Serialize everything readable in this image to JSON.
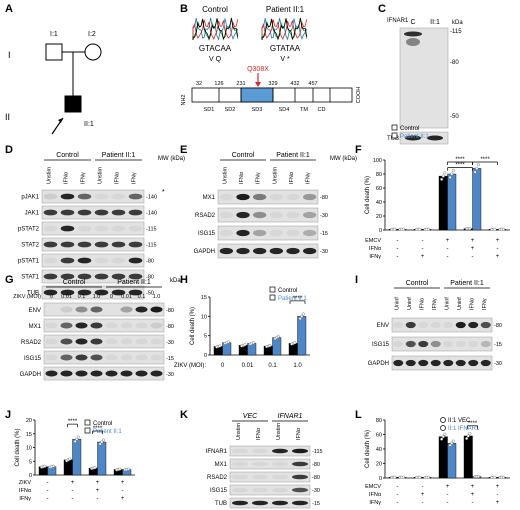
{
  "panels": {
    "A": {
      "letter": "A",
      "gen_I": "I",
      "gen_II": "II",
      "ind_I1": "I:1",
      "ind_I2": "I:2",
      "ind_II1": "II:1"
    },
    "B": {
      "letter": "B",
      "control": "Control",
      "patient": "Patient II:1",
      "seq_control": "GTACAA",
      "seq_patient": "GTATAA",
      "aa_control": "V  Q",
      "aa_patient": "V  *",
      "mutation": "Q308X",
      "nh2": "NH2",
      "cooh": "COOH",
      "positions": [
        "32",
        "126",
        "231",
        "329",
        "432",
        "457"
      ],
      "domains": [
        "SD1",
        "SD2",
        "SD3",
        "SD4",
        "TM",
        "CD"
      ]
    },
    "C": {
      "letter": "C",
      "lanes": [
        "C",
        "II:1"
      ],
      "protein": "IFNAR1",
      "loading": "TUB",
      "kda": "kDa",
      "mw": [
        "-115",
        "-80",
        "-50"
      ]
    },
    "D": {
      "letter": "D",
      "groups": [
        "Control",
        "Patient II:1"
      ],
      "lanes": [
        "Unstim",
        "IFNα",
        "IFNγ",
        "Unstim",
        "IFNα",
        "IFNγ"
      ],
      "rows": [
        "pJAK1",
        "JAK1",
        "pSTAT2",
        "STAT2",
        "pSTAT1",
        "STAT1",
        "TUB"
      ],
      "mw_title": "MW (kDa)",
      "mw": [
        "-140",
        "-140",
        "-115",
        "-115",
        "-80",
        "-80",
        "-50"
      ],
      "asterisk": "*"
    },
    "E": {
      "letter": "E",
      "groups": [
        "Control",
        "Patient II:1"
      ],
      "lanes": [
        "Unstim",
        "IFNα",
        "IFNγ",
        "Unstim",
        "IFNα",
        "IFNγ"
      ],
      "rows": [
        "MX1",
        "RSAD2",
        "ISG15",
        "GAPDH"
      ],
      "mw_title": "MW (kDa)",
      "mw": [
        "-80",
        "-30",
        "-15",
        "-30"
      ]
    },
    "F": {
      "letter": "F",
      "legend": [
        "Control",
        "Patient II:1"
      ],
      "ylabel": "Cell death (%)",
      "yticks": [
        "0",
        "20",
        "40",
        "60",
        "80",
        "100"
      ],
      "cond_labels": [
        "EMCV",
        "IFNα",
        "IFNγ"
      ],
      "signs": [
        [
          "-",
          "-",
          "+",
          "+",
          "+"
        ],
        [
          "-",
          "-",
          "-",
          "+",
          "-"
        ],
        [
          "-",
          "+",
          "-",
          "-",
          "+"
        ]
      ],
      "sig": [
        "****",
        "****",
        "****"
      ]
    },
    "G": {
      "letter": "G",
      "groups": [
        "Control",
        "Patient II:1"
      ],
      "moi_label": "ZIKV (MOI)",
      "moi": [
        "0",
        "0.01",
        "0.1",
        "1.0",
        "0",
        "0.01",
        "0.1",
        "1.0"
      ],
      "rows": [
        "ENV",
        "MX1",
        "RSAD2",
        "ISG15",
        "GAPDH"
      ],
      "kda": "kDa",
      "mw": [
        "-80",
        "-80",
        "-30",
        "-15",
        "-30"
      ]
    },
    "H": {
      "letter": "H",
      "legend": [
        "Control",
        "Patient II:1"
      ],
      "ylabel": "Cell death (%)",
      "yticks": [
        "0",
        "5",
        "10",
        "15"
      ],
      "xlabel": "ZIKV (MOI):",
      "xcats": [
        "0",
        "0.01",
        "0.1",
        "1.0"
      ],
      "sig": "****"
    },
    "I": {
      "letter": "I",
      "groups": [
        "Control",
        "Patient II:1"
      ],
      "lanes": [
        "Uninf",
        "Uninf",
        "IFNα",
        "IFNγ",
        "Uninf",
        "Uninf",
        "IFNα",
        "IFNγ"
      ],
      "rows": [
        "ENV",
        "ISG15",
        "GAPDH"
      ],
      "mw": [
        "-80",
        "-15",
        "-30"
      ]
    },
    "J": {
      "letter": "J",
      "legend": [
        "Control",
        "Patient II:1"
      ],
      "ylabel": "Cell death (%)",
      "yticks": [
        "0",
        "5",
        "10",
        "15",
        "20"
      ],
      "cond_labels": [
        "ZIKV",
        "IFNα",
        "IFNγ"
      ],
      "signs": [
        [
          "-",
          "+",
          "+",
          "+"
        ],
        [
          "-",
          "-",
          "+",
          "-"
        ],
        [
          "-",
          "-",
          "-",
          "+"
        ]
      ],
      "sig": [
        "****",
        "****"
      ]
    },
    "K": {
      "letter": "K",
      "groups": [
        "VEC",
        "IFNAR1"
      ],
      "lanes": [
        "Unstim",
        "IFNα",
        "Unstim",
        "IFNα"
      ],
      "rows": [
        "IFNAR1",
        "MX1",
        "RSAD2",
        "ISG15",
        "TUB"
      ],
      "mw": [
        "-115",
        "-80",
        "-80",
        "-30",
        "-15",
        "-50"
      ]
    },
    "L": {
      "letter": "L",
      "legend": [
        "II:1 VEC",
        "II:1 IFNAR1"
      ],
      "ylabel": "Cell death (%)",
      "yticks": [
        "0",
        "20",
        "40",
        "60",
        "80"
      ],
      "cond_labels": [
        "EMCV",
        "IFNα",
        "IFNγ"
      ],
      "signs": [
        [
          "-",
          "-",
          "+",
          "+",
          "+"
        ],
        [
          "-",
          "+",
          "-",
          "+",
          "-"
        ],
        [
          "-",
          "-",
          "-",
          "-",
          "+"
        ]
      ],
      "sig": "****"
    }
  },
  "colors": {
    "control": "#000000",
    "patient": "#4f86c6",
    "domain_highlight": "#5a9bd5",
    "mutation": "#d62728"
  },
  "chart_data": [
    {
      "panel": "F",
      "type": "bar",
      "title": "",
      "ylabel": "Cell death (%)",
      "ylim": [
        0,
        100
      ],
      "categories": [
        "Unstim",
        "IFNγ",
        "EMCV",
        "EMCV+IFNα",
        "EMCV+IFNγ"
      ],
      "series": [
        {
          "name": "Control",
          "values": [
            1,
            1,
            77,
            2,
            1
          ]
        },
        {
          "name": "Patient II:1",
          "values": [
            1,
            1,
            80,
            88,
            1
          ]
        }
      ]
    },
    {
      "panel": "H",
      "type": "bar",
      "title": "",
      "ylabel": "Cell death (%)",
      "xlabel": "ZIKV (MOI):",
      "ylim": [
        0,
        15
      ],
      "categories": [
        "0",
        "0.01",
        "0.1",
        "1.0"
      ],
      "series": [
        {
          "name": "Control",
          "values": [
            2.2,
            2.5,
            2.3,
            3.0
          ]
        },
        {
          "name": "Patient II:1",
          "values": [
            3.2,
            3.0,
            4.5,
            10.0
          ]
        }
      ]
    },
    {
      "panel": "J",
      "type": "bar",
      "title": "",
      "ylabel": "Cell death (%)",
      "ylim": [
        0,
        20
      ],
      "categories": [
        "Unstim",
        "ZIKV",
        "ZIKV+IFNα",
        "ZIKV+IFNγ"
      ],
      "series": [
        {
          "name": "Control",
          "values": [
            3,
            5.5,
            2.5,
            2
          ]
        },
        {
          "name": "Patient II:1",
          "values": [
            3,
            13,
            12,
            2
          ]
        }
      ]
    },
    {
      "panel": "L",
      "type": "bar",
      "title": "",
      "ylabel": "Cell death (%)",
      "ylim": [
        0,
        80
      ],
      "categories": [
        "Unstim",
        "IFNα",
        "EMCV",
        "EMCV+IFNα",
        "EMCV+IFNγ"
      ],
      "series": [
        {
          "name": "II:1 VEC",
          "values": [
            1,
            1,
            57,
            58,
            1
          ]
        },
        {
          "name": "II:1 IFNAR1",
          "values": [
            1,
            1,
            48,
            2,
            1
          ]
        }
      ]
    }
  ]
}
